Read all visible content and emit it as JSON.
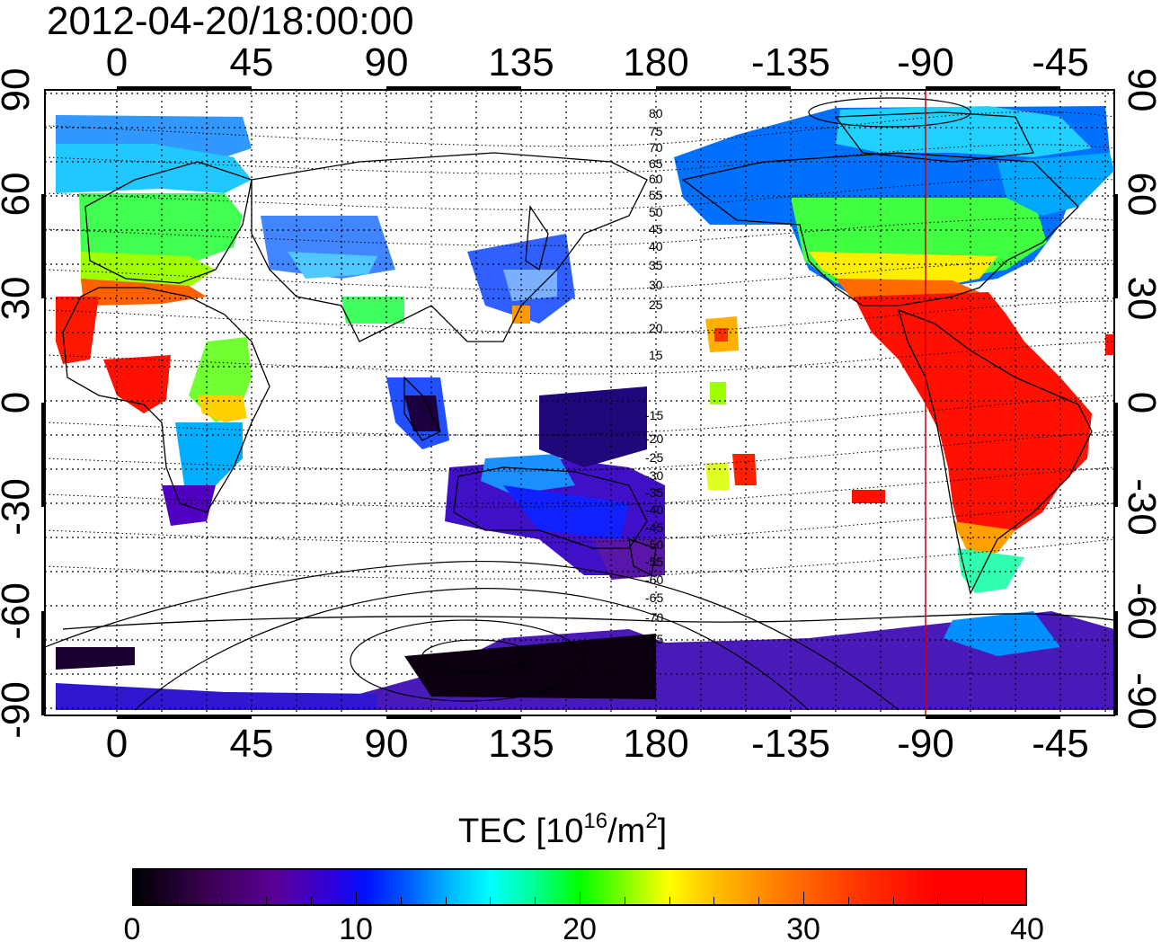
{
  "header": {
    "timestamp": "2012-04-20/18:00:00"
  },
  "map": {
    "lon_top_labels": [
      "0",
      "45",
      "90",
      "135",
      "180",
      "-135",
      "-90",
      "-45"
    ],
    "lon_bottom_labels": [
      "0",
      "45",
      "90",
      "135",
      "180",
      "-135",
      "-90",
      "-45"
    ],
    "lat_left_labels": [
      "90",
      "60",
      "30",
      "0",
      "-30",
      "-60",
      "-90"
    ],
    "lat_right_labels": [
      "90",
      "60",
      "30",
      "0",
      "-30",
      "-60",
      "-90"
    ],
    "contour_labels_north": [
      "80",
      "75",
      "70",
      "65",
      "60",
      "55",
      "50",
      "45",
      "40",
      "35",
      "30",
      "25",
      "20",
      "15"
    ],
    "contour_labels_south": [
      "-15",
      "-20",
      "-25",
      "-30",
      "-35",
      "-40",
      "-45",
      "-50",
      "-55",
      "-60",
      "-65",
      "-70",
      "-75"
    ],
    "marker_longitude": -90,
    "marker_color": "#d00000"
  },
  "colorbar": {
    "title_prefix": "TEC  [10",
    "title_exp1": "16",
    "title_mid": "/m",
    "title_exp2": "2",
    "title_suffix": "]",
    "tick_labels": [
      "0",
      "10",
      "20",
      "30",
      "40"
    ],
    "range": [
      0,
      40
    ],
    "colors": [
      "#000000",
      "#5a0096",
      "#0010ff",
      "#00ffff",
      "#00ff00",
      "#ffff00",
      "#ff8000",
      "#ff0000"
    ]
  }
}
